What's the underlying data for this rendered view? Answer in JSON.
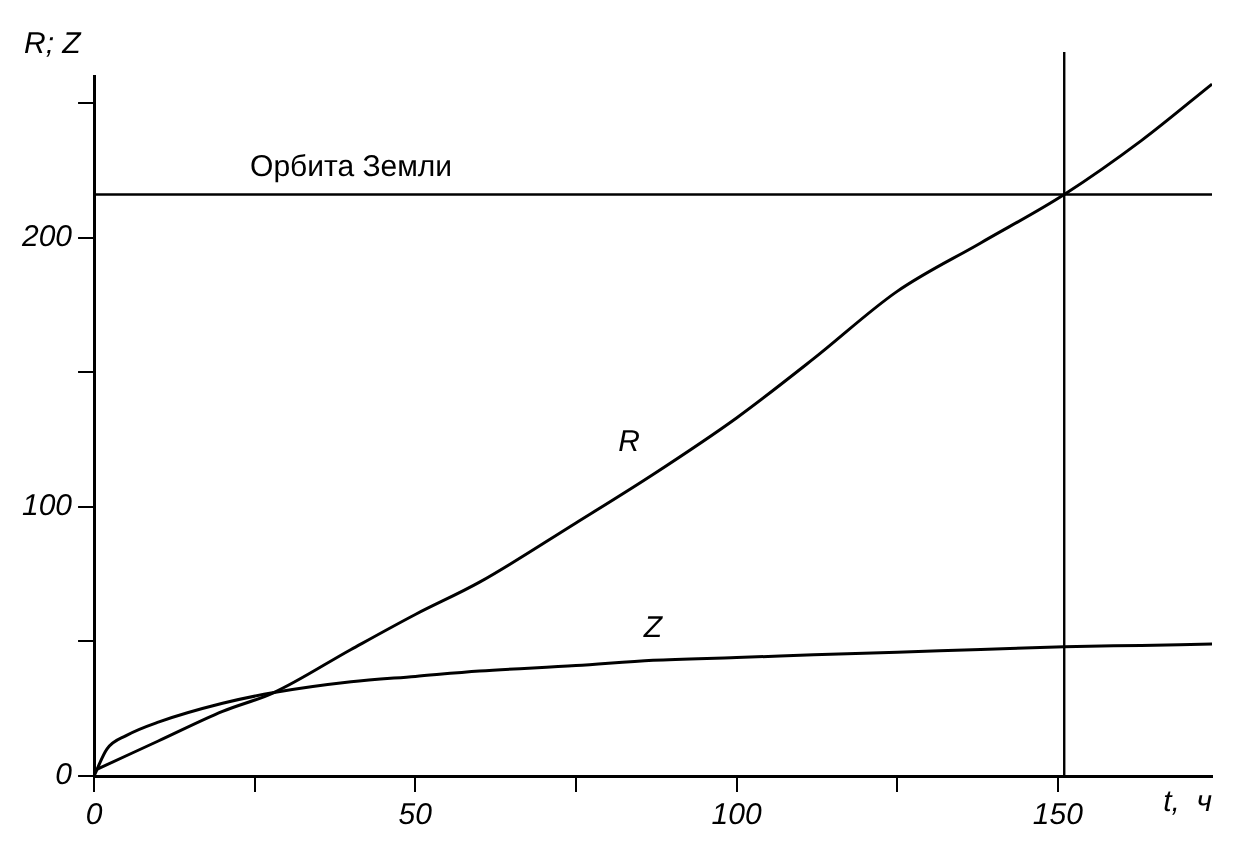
{
  "chart_data": {
    "type": "line",
    "x": [
      0,
      2,
      5,
      10,
      20,
      28,
      40,
      50,
      60,
      75,
      87,
      100,
      112,
      125,
      138,
      151,
      163,
      174
    ],
    "series": [
      {
        "name": "R",
        "color": "#000000",
        "x": [
          0,
          10,
          20,
          28,
          40,
          50,
          60,
          75,
          87,
          100,
          112,
          125,
          138,
          151,
          163,
          174
        ],
        "values": [
          2,
          13,
          24,
          31,
          47,
          60,
          72,
          94,
          112,
          133,
          155,
          180,
          198,
          216,
          236,
          257
        ]
      },
      {
        "name": "Z",
        "color": "#000000",
        "values": [
          0,
          10,
          15,
          20,
          27,
          31,
          35,
          37,
          39,
          41,
          43,
          44,
          45,
          46,
          47,
          48,
          48.5,
          49
        ]
      }
    ],
    "xlabel": "t,  ч",
    "ylabel": "R; Z",
    "xlim": [
      0,
      174
    ],
    "ylim": [
      0,
      260
    ],
    "xticks": [
      0,
      {
        "value": 25,
        "label": null
      },
      50,
      {
        "value": 75,
        "label": null
      },
      100,
      {
        "value": 125,
        "label": null
      },
      150
    ],
    "yticks": [
      0,
      {
        "value": 50,
        "label": null
      },
      100,
      {
        "value": 150,
        "label": null
      },
      200,
      {
        "value": 250,
        "label": null
      }
    ],
    "ref_lines": [
      {
        "axis": "y",
        "value": 216,
        "label": "Орбита Земли"
      },
      {
        "axis": "x",
        "value": 151
      }
    ],
    "grid": false,
    "legend": false,
    "marker": "none",
    "line_style": "solid"
  }
}
